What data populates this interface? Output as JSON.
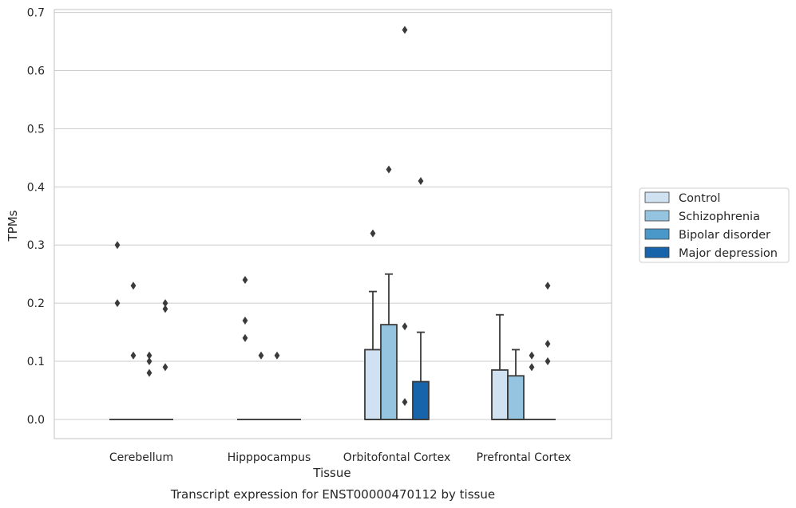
{
  "caption": "Transcript expression for ENST00000470112 by tissue",
  "chart_data": {
    "type": "box",
    "xlabel": "Tissue",
    "ylabel": "TPMs",
    "ylim": [
      -0.033,
      0.705
    ],
    "yticks": [
      0.0,
      0.1,
      0.2,
      0.3,
      0.4,
      0.5,
      0.6,
      0.7
    ],
    "ytick_labels": [
      "0.0",
      "0.1",
      "0.2",
      "0.3",
      "0.4",
      "0.5",
      "0.6",
      "0.7"
    ],
    "grid": "horizontal",
    "legend_position": "right",
    "categories": [
      "Cerebellum",
      "Hipppocampus",
      "Orbitofontal Cortex",
      "Prefrontal Cortex"
    ],
    "series": [
      {
        "name": "Control",
        "color": "#d0e1f2",
        "boxes": [
          {
            "q1": 0,
            "median": 0,
            "q3": 0,
            "whisker_low": 0,
            "whisker_high": 0,
            "outliers": [
              0.3,
              0.2
            ]
          },
          {
            "q1": 0,
            "median": 0,
            "q3": 0,
            "whisker_low": 0,
            "whisker_high": 0,
            "outliers": [
              0.24,
              0.17,
              0.14
            ]
          },
          {
            "q1": 0,
            "median": 0,
            "q3": 0.12,
            "whisker_low": 0,
            "whisker_high": 0.22,
            "outliers": [
              0.32
            ]
          },
          {
            "q1": 0,
            "median": 0,
            "q3": 0.085,
            "whisker_low": 0,
            "whisker_high": 0.18,
            "outliers": []
          }
        ]
      },
      {
        "name": "Schizophrenia",
        "color": "#94c4df",
        "boxes": [
          {
            "q1": 0,
            "median": 0,
            "q3": 0,
            "whisker_low": 0,
            "whisker_high": 0,
            "outliers": [
              0.23,
              0.11
            ]
          },
          {
            "q1": 0,
            "median": 0,
            "q3": 0,
            "whisker_low": 0,
            "whisker_high": 0,
            "outliers": [
              0.11
            ]
          },
          {
            "q1": 0,
            "median": 0,
            "q3": 0.163,
            "whisker_low": 0,
            "whisker_high": 0.25,
            "outliers": [
              0.43
            ]
          },
          {
            "q1": 0,
            "median": 0,
            "q3": 0.075,
            "whisker_low": 0,
            "whisker_high": 0.12,
            "outliers": []
          }
        ]
      },
      {
        "name": "Bipolar disorder",
        "color": "#4a98c9",
        "boxes": [
          {
            "q1": 0,
            "median": 0,
            "q3": 0,
            "whisker_low": 0,
            "whisker_high": 0,
            "outliers": [
              0.11,
              0.1,
              0.08
            ]
          },
          {
            "q1": 0,
            "median": 0,
            "q3": 0,
            "whisker_low": 0,
            "whisker_high": 0,
            "outliers": [
              0.11
            ]
          },
          {
            "q1": 0,
            "median": 0,
            "q3": 0,
            "whisker_low": 0,
            "whisker_high": 0,
            "outliers": [
              0.67,
              0.16,
              0.03
            ]
          },
          {
            "q1": 0,
            "median": 0,
            "q3": 0,
            "whisker_low": 0,
            "whisker_high": 0,
            "outliers": [
              0.11,
              0.09
            ]
          }
        ]
      },
      {
        "name": "Major depression",
        "color": "#1764ab",
        "boxes": [
          {
            "q1": 0,
            "median": 0,
            "q3": 0,
            "whisker_low": 0,
            "whisker_high": 0,
            "outliers": [
              0.2,
              0.19,
              0.09
            ]
          },
          {
            "q1": 0,
            "median": 0,
            "q3": 0,
            "whisker_low": 0,
            "whisker_high": 0,
            "outliers": []
          },
          {
            "q1": 0,
            "median": 0,
            "q3": 0.065,
            "whisker_low": 0,
            "whisker_high": 0.15,
            "outliers": [
              0.41
            ]
          },
          {
            "q1": 0,
            "median": 0,
            "q3": 0,
            "whisker_low": 0,
            "whisker_high": 0,
            "outliers": [
              0.23,
              0.13,
              0.1
            ]
          }
        ]
      }
    ]
  }
}
